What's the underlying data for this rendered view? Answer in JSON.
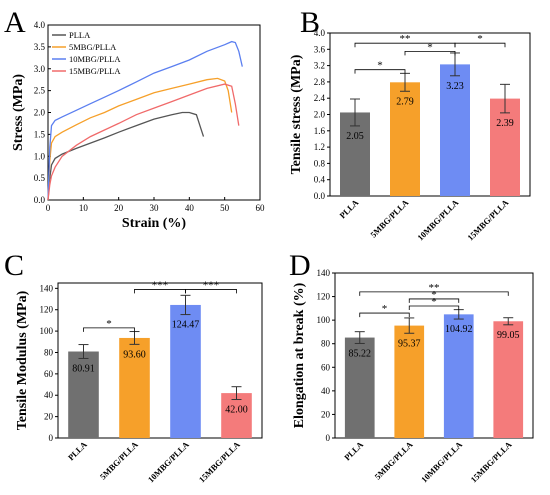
{
  "chart_data": [
    {
      "panel": "A",
      "type": "line",
      "xlabel": "Strain (%)",
      "ylabel": "Stress (MPa)",
      "xlim": [
        0,
        60
      ],
      "ylim": [
        0,
        4
      ],
      "xticks": [
        0,
        10,
        20,
        30,
        40,
        50,
        60
      ],
      "yticks": [
        0.0,
        0.5,
        1.0,
        1.5,
        2.0,
        2.5,
        3.0,
        3.5,
        4.0
      ],
      "ytick_labels": [
        "0.0",
        "0.5",
        "1.0",
        "1.5",
        "2.0",
        "2.5",
        "3.0",
        "3.5",
        "4.0"
      ],
      "legend_position": "top-left",
      "series": [
        {
          "name": "PLLA",
          "color": "#555555",
          "x": [
            0,
            0.5,
            1,
            2,
            4,
            8,
            12,
            16,
            20,
            25,
            30,
            35,
            38,
            40,
            42,
            43,
            44
          ],
          "y": [
            0,
            0.5,
            0.8,
            0.95,
            1.05,
            1.18,
            1.3,
            1.42,
            1.55,
            1.7,
            1.85,
            1.95,
            2.0,
            2.0,
            1.95,
            1.7,
            1.45
          ]
        },
        {
          "name": "5MBG/PLLA",
          "color": "#f6a02a",
          "x": [
            0,
            0.5,
            1,
            2,
            4,
            8,
            12,
            16,
            20,
            25,
            30,
            35,
            40,
            45,
            48,
            50,
            51,
            52
          ],
          "y": [
            0,
            0.9,
            1.3,
            1.45,
            1.55,
            1.72,
            1.88,
            2.0,
            2.15,
            2.3,
            2.45,
            2.55,
            2.65,
            2.75,
            2.78,
            2.72,
            2.5,
            2.0
          ]
        },
        {
          "name": "10MBG/PLLA",
          "color": "#5b7ff0",
          "x": [
            0,
            0.5,
            1,
            2,
            4,
            8,
            12,
            16,
            20,
            25,
            30,
            35,
            40,
            45,
            50,
            52,
            53,
            54,
            55
          ],
          "y": [
            0,
            1.2,
            1.7,
            1.82,
            1.9,
            2.05,
            2.2,
            2.35,
            2.5,
            2.7,
            2.9,
            3.05,
            3.2,
            3.4,
            3.55,
            3.62,
            3.6,
            3.4,
            3.05
          ]
        },
        {
          "name": "15MBG/PLLA",
          "color": "#f06a6a",
          "x": [
            0,
            0.5,
            1,
            2,
            4,
            8,
            12,
            16,
            20,
            25,
            30,
            35,
            40,
            45,
            50,
            52,
            53,
            54
          ],
          "y": [
            0,
            0.35,
            0.55,
            0.75,
            1.0,
            1.25,
            1.45,
            1.6,
            1.75,
            1.95,
            2.1,
            2.25,
            2.4,
            2.55,
            2.65,
            2.6,
            2.2,
            1.7
          ]
        }
      ]
    },
    {
      "panel": "B",
      "type": "bar",
      "ylabel": "Tensile stress (MPa)",
      "categories": [
        "PLLA",
        "5MBG/PLLA",
        "10MBG/PLLA",
        "15MBG/PLLA"
      ],
      "values": [
        2.05,
        2.79,
        3.23,
        2.39
      ],
      "value_labels": [
        "2.05",
        "2.79",
        "3.23",
        "2.39"
      ],
      "errors": [
        0.33,
        0.22,
        0.28,
        0.35
      ],
      "colors": [
        "#707070",
        "#f6a02a",
        "#6e8cf3",
        "#f47b7b"
      ],
      "ylim": [
        0,
        4.0
      ],
      "yticks": [
        0.0,
        0.4,
        0.8,
        1.2,
        1.6,
        2.0,
        2.4,
        2.8,
        3.2,
        3.6,
        4.0
      ],
      "ytick_labels": [
        "0.0",
        "0.4",
        "0.8",
        "1.2",
        "1.6",
        "2.0",
        "2.4",
        "2.8",
        "3.2",
        "3.6",
        "4.0"
      ],
      "significance": [
        {
          "from": 0,
          "to": 1,
          "label": "*",
          "y": 3.1
        },
        {
          "from": 1,
          "to": 2,
          "label": "*",
          "y": 3.55
        },
        {
          "from": 0,
          "to": 2,
          "label": "**",
          "y": 3.75
        },
        {
          "from": 2,
          "to": 3,
          "label": "*",
          "y": 3.75
        }
      ]
    },
    {
      "panel": "C",
      "type": "bar",
      "ylabel": "Tensile Modulus (MPa)",
      "categories": [
        "PLLA",
        "5MBG/PLLA",
        "10MBG/PLLA",
        "15MBG/PLLA"
      ],
      "values": [
        80.91,
        93.6,
        124.47,
        42.0
      ],
      "value_labels": [
        "80.91",
        "93.60",
        "124.47",
        "42.00"
      ],
      "errors": [
        6.5,
        6.0,
        9.0,
        6.0
      ],
      "colors": [
        "#707070",
        "#f6a02a",
        "#6e8cf3",
        "#f47b7b"
      ],
      "ylim": [
        0,
        145
      ],
      "yticks": [
        0,
        20,
        40,
        60,
        80,
        100,
        120,
        140
      ],
      "ytick_labels": [
        "0",
        "20",
        "40",
        "60",
        "80",
        "100",
        "120",
        "140"
      ],
      "significance": [
        {
          "from": 0,
          "to": 1,
          "label": "*",
          "y": 103
        },
        {
          "from": 1,
          "to": 2,
          "label": "***",
          "y": 139
        },
        {
          "from": 2,
          "to": 3,
          "label": "***",
          "y": 139
        }
      ]
    },
    {
      "panel": "D",
      "type": "bar",
      "ylabel": "Elongation at break (%)",
      "categories": [
        "PLLA",
        "5MBG/PLLA",
        "10MBG/PLLA",
        "15MBG/PLLA"
      ],
      "values": [
        85.22,
        95.37,
        104.92,
        99.05
      ],
      "value_labels": [
        "85.22",
        "95.37",
        "104.92",
        "99.05"
      ],
      "errors": [
        5.0,
        6.5,
        4.0,
        3.0
      ],
      "colors": [
        "#707070",
        "#f6a02a",
        "#6e8cf3",
        "#f47b7b"
      ],
      "ylim": [
        0,
        140
      ],
      "yticks": [
        0,
        20,
        40,
        60,
        80,
        100,
        120,
        140
      ],
      "ytick_labels": [
        "0",
        "20",
        "40",
        "60",
        "80",
        "100",
        "120",
        "140"
      ],
      "significance": [
        {
          "from": 0,
          "to": 1,
          "label": "*",
          "y": 106
        },
        {
          "from": 1,
          "to": 2,
          "label": "*",
          "y": 112
        },
        {
          "from": 1,
          "to": 2,
          "label": "*",
          "y": 118
        },
        {
          "from": 0,
          "to": 3,
          "label": "**",
          "y": 124
        }
      ]
    }
  ]
}
